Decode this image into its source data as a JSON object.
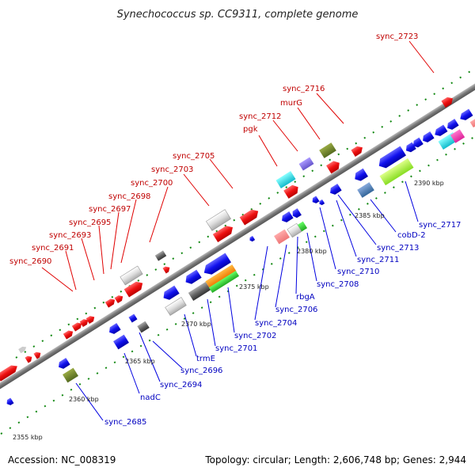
{
  "title": "Synechococcus sp. CC9311, complete genome",
  "footer": {
    "accession": "Accession: NC_008319",
    "summary": "Topology: circular; Length: 2,606,748 bp; Genes: 2,944"
  },
  "kbp_ticks": [
    {
      "kbp": 2355,
      "label": "2355 kbp"
    },
    {
      "kbp": 2360,
      "label": "2360 kbp"
    },
    {
      "kbp": 2365,
      "label": "2365 kbp"
    },
    {
      "kbp": 2370,
      "label": "2370 kbp"
    },
    {
      "kbp": 2375,
      "label": "2375 kbp"
    },
    {
      "kbp": 2380,
      "label": "2380 kbp"
    },
    {
      "kbp": 2385,
      "label": "2385 kbp"
    },
    {
      "kbp": 2390,
      "label": "2390 kbp"
    }
  ],
  "colors": {
    "forward_gene": "#ee1111",
    "reverse_gene": "#1111ee",
    "backbone": "#888888",
    "tick": "#118811"
  },
  "forward_labels": [
    "sync_2690",
    "sync_2691",
    "sync_2693",
    "sync_2695",
    "sync_2697",
    "sync_2698",
    "sync_2700",
    "sync_2703",
    "sync_2705",
    "pgk",
    "sync_2712",
    "murG",
    "sync_2716",
    "sync_2723"
  ],
  "reverse_labels": [
    "sync_2685",
    "nadC",
    "sync_2694",
    "sync_2696",
    "trmE",
    "sync_2701",
    "sync_2702",
    "sync_2704",
    "sync_2706",
    "rbgA",
    "sync_2708",
    "sync_2710",
    "sync_2711",
    "sync_2713",
    "cobD-2",
    "sync_2717"
  ]
}
